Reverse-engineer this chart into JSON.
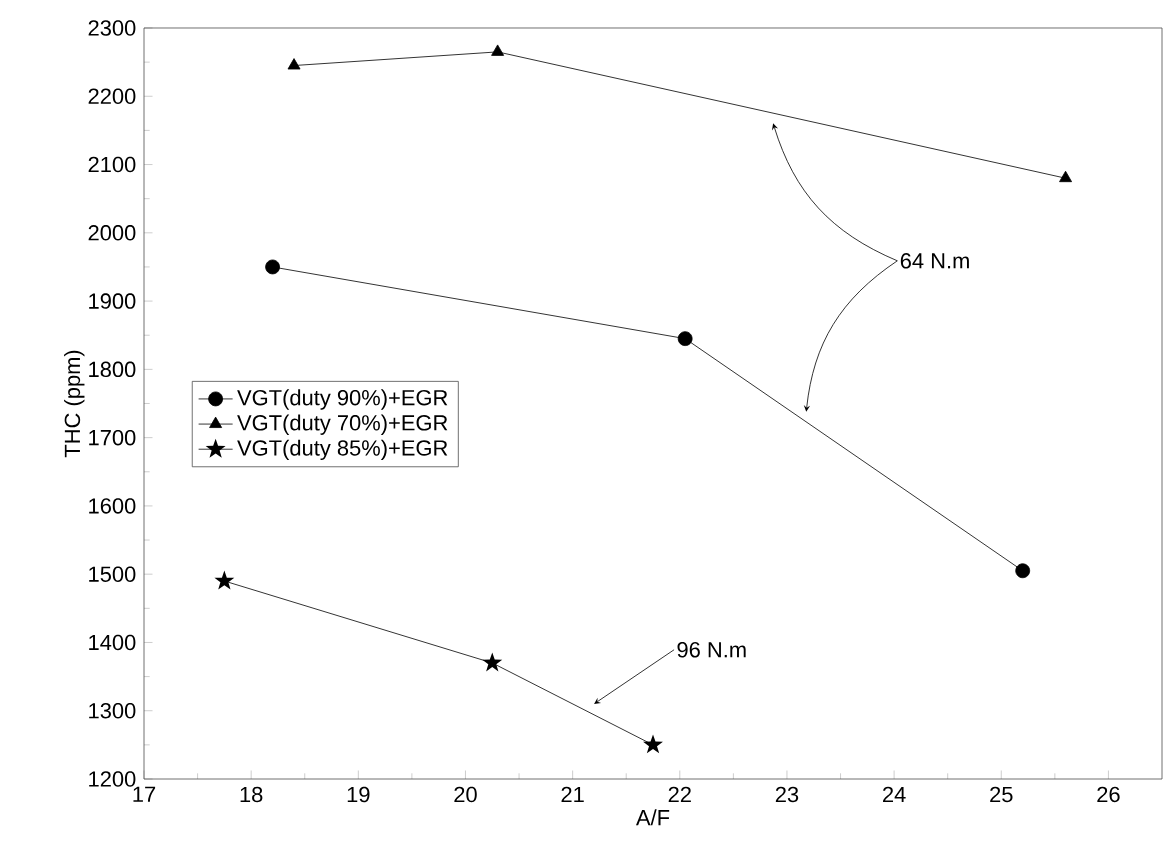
{
  "chart_data": {
    "type": "line",
    "xlabel": "A/F",
    "ylabel": "THC (ppm)",
    "xlim": [
      17,
      26.5
    ],
    "xticks": [
      17,
      18,
      19,
      20,
      21,
      22,
      23,
      24,
      25,
      26
    ],
    "ylim": [
      1200,
      2300
    ],
    "yticks": [
      1200,
      1300,
      1400,
      1500,
      1600,
      1700,
      1800,
      1900,
      2000,
      2100,
      2200,
      2300
    ],
    "legend": "left",
    "line_style": "solid",
    "grid": false,
    "series": [
      {
        "name": "VGT(duty 90%)+EGR",
        "color": "#000000",
        "marker": "circle",
        "x": [
          18.2,
          22.05,
          25.2
        ],
        "values": [
          1950,
          1845,
          1505
        ]
      },
      {
        "name": "VGT(duty 70%)+EGR",
        "color": "#000000",
        "marker": "triangle",
        "x": [
          18.4,
          20.3,
          25.6
        ],
        "values": [
          2245,
          2265,
          2080
        ]
      },
      {
        "name": "VGT(duty 85%)+EGR",
        "color": "#000000",
        "marker": "star",
        "x": [
          17.75,
          20.25,
          21.75
        ],
        "values": [
          1490,
          1370,
          1250
        ]
      }
    ],
    "annotations": [
      {
        "text": "64 N.m",
        "x": 23.18,
        "y": 1738
      },
      {
        "text": "96 N.m",
        "x": 21.2,
        "y": 1310
      }
    ]
  }
}
